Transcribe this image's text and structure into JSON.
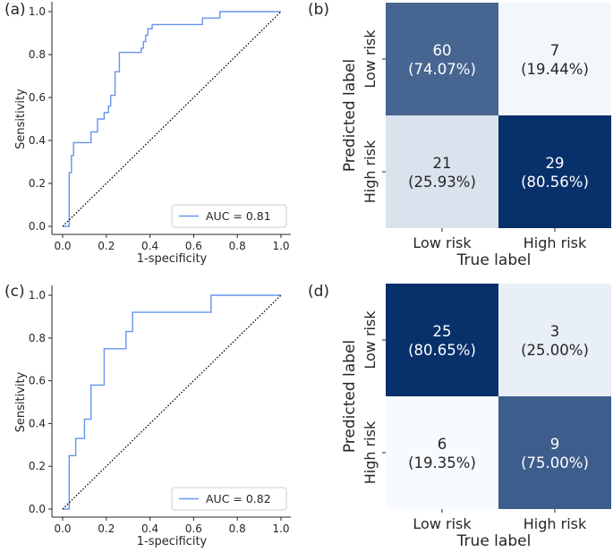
{
  "chart_data": [
    {
      "panel": "(a)",
      "type": "line",
      "title": "",
      "xlabel": "1-specificity",
      "ylabel": "Sensitivity",
      "xlim": [
        0.0,
        1.0
      ],
      "ylim": [
        0.0,
        1.0
      ],
      "xticks": [
        "0.0",
        "0.2",
        "0.4",
        "0.6",
        "0.8",
        "1.0"
      ],
      "yticks": [
        "0.0",
        "0.2",
        "0.4",
        "0.6",
        "0.8",
        "1.0"
      ],
      "legend": "AUC = 0.81",
      "legend_position": "lower-right",
      "series": [
        {
          "name": "ROC",
          "color": "#6495ed",
          "x": [
            0.0,
            0.03,
            0.03,
            0.04,
            0.04,
            0.05,
            0.05,
            0.13,
            0.13,
            0.16,
            0.16,
            0.19,
            0.19,
            0.21,
            0.21,
            0.22,
            0.22,
            0.24,
            0.24,
            0.26,
            0.26,
            0.36,
            0.36,
            0.37,
            0.37,
            0.38,
            0.38,
            0.39,
            0.39,
            0.41,
            0.41,
            0.46,
            0.46,
            0.64,
            0.64,
            0.72,
            0.72,
            1.0
          ],
          "y": [
            0.0,
            0.0,
            0.25,
            0.25,
            0.33,
            0.33,
            0.39,
            0.39,
            0.44,
            0.44,
            0.5,
            0.5,
            0.53,
            0.53,
            0.56,
            0.56,
            0.61,
            0.61,
            0.72,
            0.72,
            0.81,
            0.81,
            0.83,
            0.83,
            0.86,
            0.86,
            0.89,
            0.89,
            0.92,
            0.92,
            0.94,
            0.94,
            0.94,
            0.94,
            0.97,
            0.97,
            1.0,
            1.0
          ]
        },
        {
          "name": "chance",
          "color": "#000000",
          "x": [
            0.0,
            1.0
          ],
          "y": [
            0.0,
            1.0
          ]
        }
      ]
    },
    {
      "panel": "(b)",
      "type": "heatmap",
      "xlabel": "True label",
      "ylabel": "Predicted label",
      "x_categories": [
        "Low risk",
        "High risk"
      ],
      "y_categories": [
        "Low risk",
        "High risk"
      ],
      "cells": [
        [
          {
            "count": "60",
            "pct": "(74.07%)",
            "shade": 0.74
          },
          {
            "count": "7",
            "pct": "(19.44%)",
            "shade": 0.02
          }
        ],
        [
          {
            "count": "21",
            "pct": "(25.93%)",
            "shade": 0.12
          },
          {
            "count": "29",
            "pct": "(80.56%)",
            "shade": 1.0
          }
        ]
      ]
    },
    {
      "panel": "(c)",
      "type": "line",
      "title": "",
      "xlabel": "1-specificity",
      "ylabel": "Sensitivity",
      "xlim": [
        0.0,
        1.0
      ],
      "ylim": [
        0.0,
        1.0
      ],
      "xticks": [
        "0.0",
        "0.2",
        "0.4",
        "0.6",
        "0.8",
        "1.0"
      ],
      "yticks": [
        "0.0",
        "0.2",
        "0.4",
        "0.6",
        "0.8",
        "1.0"
      ],
      "legend": "AUC = 0.82",
      "legend_position": "lower-right",
      "series": [
        {
          "name": "ROC",
          "color": "#6495ed",
          "x": [
            0.0,
            0.03,
            0.03,
            0.06,
            0.06,
            0.1,
            0.1,
            0.13,
            0.13,
            0.19,
            0.19,
            0.29,
            0.29,
            0.32,
            0.32,
            0.68,
            0.68,
            1.0
          ],
          "y": [
            0.0,
            0.0,
            0.25,
            0.25,
            0.33,
            0.33,
            0.42,
            0.42,
            0.58,
            0.58,
            0.75,
            0.75,
            0.83,
            0.83,
            0.92,
            0.92,
            1.0,
            1.0
          ]
        },
        {
          "name": "chance",
          "color": "#000000",
          "x": [
            0.0,
            1.0
          ],
          "y": [
            0.0,
            1.0
          ]
        }
      ]
    },
    {
      "panel": "(d)",
      "type": "heatmap",
      "xlabel": "True label",
      "ylabel": "Predicted label",
      "x_categories": [
        "Low risk",
        "High risk"
      ],
      "y_categories": [
        "Low risk",
        "High risk"
      ],
      "cells": [
        [
          {
            "count": "25",
            "pct": "(80.65%)",
            "shade": 1.0
          },
          {
            "count": "3",
            "pct": "(25.00%)",
            "shade": 0.06
          }
        ],
        [
          {
            "count": "6",
            "pct": "(19.35%)",
            "shade": 0.0
          },
          {
            "count": "9",
            "pct": "(75.00%)",
            "shade": 0.78
          }
        ]
      ]
    }
  ]
}
